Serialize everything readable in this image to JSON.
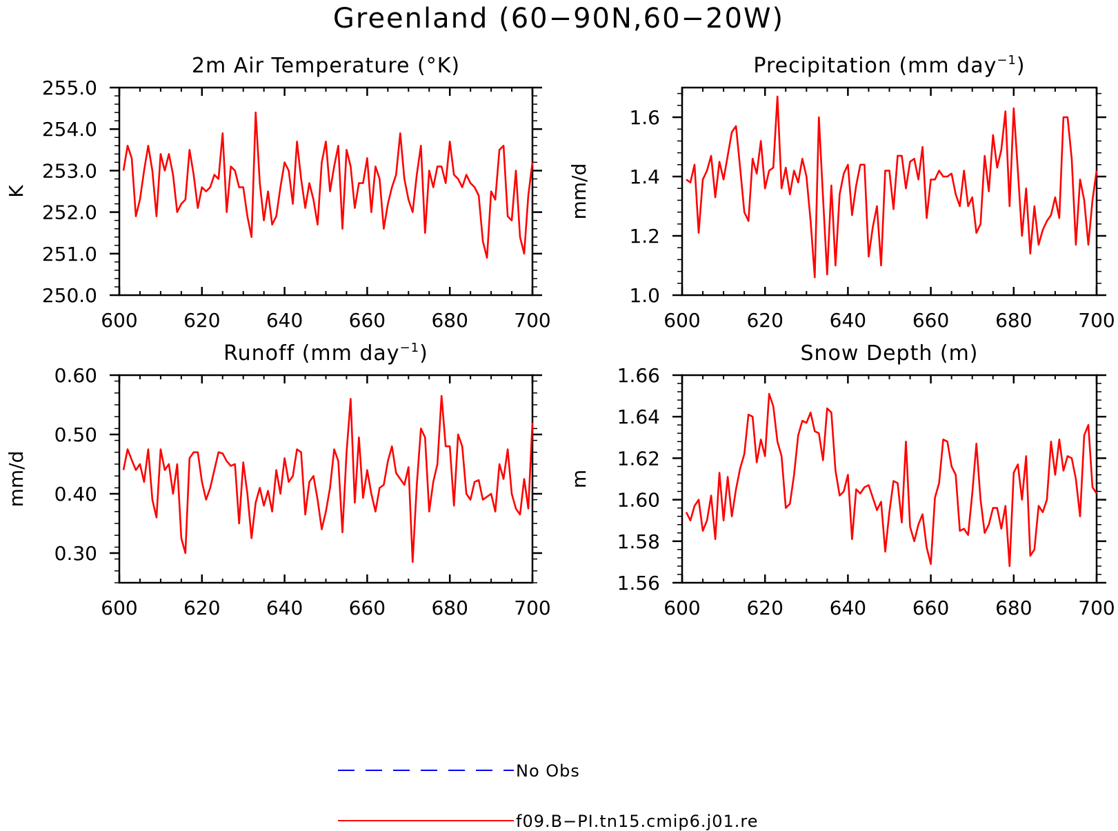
{
  "figure": {
    "title": "Greenland (60−90N,60−20W)"
  },
  "chart_data": [
    {
      "id": "temp",
      "type": "line",
      "title": "2m Air Temperature (°K)",
      "xlabel": "",
      "ylabel": "K",
      "xlim": [
        600,
        700
      ],
      "ylim": [
        250.0,
        255.0
      ],
      "xticks": [
        "600",
        "620",
        "640",
        "660",
        "680",
        "700"
      ],
      "yticks": [
        "250.0",
        "251.0",
        "252.0",
        "253.0",
        "254.0",
        "255.0"
      ],
      "x": [
        601,
        602,
        603,
        604,
        605,
        606,
        607,
        608,
        609,
        610,
        611,
        612,
        613,
        614,
        615,
        616,
        617,
        618,
        619,
        620,
        621,
        622,
        623,
        624,
        625,
        626,
        627,
        628,
        629,
        630,
        631,
        632,
        633,
        634,
        635,
        636,
        637,
        638,
        639,
        640,
        641,
        642,
        643,
        644,
        645,
        646,
        647,
        648,
        649,
        650,
        651,
        652,
        653,
        654,
        655,
        656,
        657,
        658,
        659,
        660,
        661,
        662,
        663,
        664,
        665,
        666,
        667,
        668,
        669,
        670,
        671,
        672,
        673,
        674,
        675,
        676,
        677,
        678,
        679,
        680,
        681,
        682,
        683,
        684,
        685,
        686,
        687,
        688,
        689,
        690,
        691,
        692,
        693,
        694,
        695,
        696,
        697,
        698,
        699,
        700
      ],
      "series": [
        {
          "name": "f09.B−PI.tn15.cmip6.j01.re",
          "color": "#ff0000",
          "values": [
            253.0,
            253.6,
            253.3,
            251.9,
            252.3,
            253.0,
            253.6,
            253.0,
            251.9,
            253.4,
            253.0,
            253.4,
            252.9,
            252.0,
            252.2,
            252.3,
            253.5,
            252.9,
            252.1,
            252.6,
            252.5,
            252.6,
            252.9,
            252.8,
            253.9,
            252.0,
            253.1,
            253.0,
            252.6,
            252.6,
            251.9,
            251.4,
            254.4,
            252.7,
            251.8,
            252.5,
            251.7,
            251.9,
            252.6,
            253.2,
            253.0,
            252.2,
            253.7,
            252.8,
            252.1,
            252.7,
            252.3,
            251.7,
            253.2,
            253.7,
            252.5,
            253.1,
            253.6,
            251.6,
            253.5,
            253.1,
            252.1,
            252.7,
            252.7,
            253.3,
            252.0,
            253.1,
            252.8,
            251.6,
            252.2,
            252.6,
            252.9,
            253.9,
            252.8,
            252.3,
            252.0,
            252.9,
            253.6,
            251.5,
            253.0,
            252.6,
            253.1,
            253.1,
            252.7,
            253.7,
            252.9,
            252.8,
            252.6,
            252.9,
            252.7,
            252.6,
            252.4,
            251.3,
            250.9,
            252.5,
            252.3,
            253.5,
            253.6,
            251.9,
            251.8,
            253.0,
            251.4,
            251.0,
            252.4,
            253.2
          ]
        }
      ]
    },
    {
      "id": "precip",
      "type": "line",
      "title": "Precipitation (mm day",
      "title_sup": "−1",
      "title_tail": ")",
      "xlabel": "",
      "ylabel": "mm/d",
      "xlim": [
        600,
        700
      ],
      "ylim": [
        1.0,
        1.7
      ],
      "ytick_values": [
        1.0,
        1.2,
        1.4,
        1.6
      ],
      "xticks": [
        "600",
        "620",
        "640",
        "660",
        "680",
        "700"
      ],
      "yticks": [
        "1.0",
        "1.2",
        "1.4",
        "1.6"
      ],
      "x": [
        601,
        602,
        603,
        604,
        605,
        606,
        607,
        608,
        609,
        610,
        611,
        612,
        613,
        614,
        615,
        616,
        617,
        618,
        619,
        620,
        621,
        622,
        623,
        624,
        625,
        626,
        627,
        628,
        629,
        630,
        631,
        632,
        633,
        634,
        635,
        636,
        637,
        638,
        639,
        640,
        641,
        642,
        643,
        644,
        645,
        646,
        647,
        648,
        649,
        650,
        651,
        652,
        653,
        654,
        655,
        656,
        657,
        658,
        659,
        660,
        661,
        662,
        663,
        664,
        665,
        666,
        667,
        668,
        669,
        670,
        671,
        672,
        673,
        674,
        675,
        676,
        677,
        678,
        679,
        680,
        681,
        682,
        683,
        684,
        685,
        686,
        687,
        688,
        689,
        690,
        691,
        692,
        693,
        694,
        695,
        696,
        697,
        698,
        699,
        700
      ],
      "series": [
        {
          "name": "f09.B−PI.tn15.cmip6.j01.re",
          "color": "#ff0000",
          "values": [
            1.39,
            1.38,
            1.44,
            1.21,
            1.39,
            1.42,
            1.47,
            1.33,
            1.45,
            1.39,
            1.47,
            1.55,
            1.57,
            1.43,
            1.28,
            1.25,
            1.46,
            1.41,
            1.52,
            1.36,
            1.42,
            1.43,
            1.67,
            1.36,
            1.43,
            1.34,
            1.42,
            1.38,
            1.46,
            1.4,
            1.25,
            1.06,
            1.6,
            1.33,
            1.07,
            1.37,
            1.1,
            1.34,
            1.41,
            1.44,
            1.27,
            1.37,
            1.44,
            1.44,
            1.13,
            1.23,
            1.3,
            1.1,
            1.42,
            1.42,
            1.29,
            1.47,
            1.47,
            1.36,
            1.45,
            1.46,
            1.39,
            1.5,
            1.26,
            1.39,
            1.39,
            1.42,
            1.4,
            1.4,
            1.41,
            1.34,
            1.3,
            1.42,
            1.3,
            1.33,
            1.21,
            1.24,
            1.47,
            1.35,
            1.54,
            1.43,
            1.49,
            1.62,
            1.3,
            1.63,
            1.42,
            1.2,
            1.36,
            1.14,
            1.3,
            1.17,
            1.22,
            1.25,
            1.27,
            1.33,
            1.26,
            1.6,
            1.6,
            1.46,
            1.17,
            1.39,
            1.32,
            1.17,
            1.32,
            1.42
          ]
        }
      ]
    },
    {
      "id": "runoff",
      "type": "line",
      "title": "Runoff (mm day",
      "title_sup": "−1",
      "title_tail": ")",
      "xlabel": "",
      "ylabel": "mm/d",
      "xlim": [
        600,
        700
      ],
      "ylim": [
        0.25,
        0.6
      ],
      "ytick_values": [
        0.3,
        0.4,
        0.5,
        0.6
      ],
      "xticks": [
        "600",
        "620",
        "640",
        "660",
        "680",
        "700"
      ],
      "yticks": [
        "0.30",
        "0.40",
        "0.50",
        "0.60"
      ],
      "x": [
        601,
        602,
        603,
        604,
        605,
        606,
        607,
        608,
        609,
        610,
        611,
        612,
        613,
        614,
        615,
        616,
        617,
        618,
        619,
        620,
        621,
        622,
        623,
        624,
        625,
        626,
        627,
        628,
        629,
        630,
        631,
        632,
        633,
        634,
        635,
        636,
        637,
        638,
        639,
        640,
        641,
        642,
        643,
        644,
        645,
        646,
        647,
        648,
        649,
        650,
        651,
        652,
        653,
        654,
        655,
        656,
        657,
        658,
        659,
        660,
        661,
        662,
        663,
        664,
        665,
        666,
        667,
        668,
        669,
        670,
        671,
        672,
        673,
        674,
        675,
        676,
        677,
        678,
        679,
        680,
        681,
        682,
        683,
        684,
        685,
        686,
        687,
        688,
        689,
        690,
        691,
        692,
        693,
        694,
        695,
        696,
        697,
        698,
        699,
        700
      ],
      "series": [
        {
          "name": "f09.B−PI.tn15.cmip6.j01.re",
          "color": "#ff0000",
          "values": [
            0.44,
            0.475,
            0.457,
            0.44,
            0.45,
            0.42,
            0.475,
            0.39,
            0.36,
            0.475,
            0.44,
            0.45,
            0.4,
            0.45,
            0.325,
            0.3,
            0.46,
            0.47,
            0.47,
            0.42,
            0.39,
            0.41,
            0.44,
            0.47,
            0.468,
            0.455,
            0.447,
            0.45,
            0.35,
            0.453,
            0.4,
            0.325,
            0.385,
            0.41,
            0.38,
            0.405,
            0.37,
            0.44,
            0.4,
            0.46,
            0.42,
            0.43,
            0.475,
            0.47,
            0.365,
            0.42,
            0.43,
            0.39,
            0.34,
            0.37,
            0.41,
            0.475,
            0.455,
            0.335,
            0.47,
            0.56,
            0.385,
            0.495,
            0.393,
            0.44,
            0.4,
            0.37,
            0.41,
            0.415,
            0.455,
            0.48,
            0.435,
            0.425,
            0.415,
            0.445,
            0.285,
            0.415,
            0.51,
            0.495,
            0.37,
            0.42,
            0.45,
            0.565,
            0.48,
            0.48,
            0.38,
            0.5,
            0.48,
            0.4,
            0.39,
            0.42,
            0.423,
            0.39,
            0.395,
            0.4,
            0.37,
            0.45,
            0.425,
            0.475,
            0.4,
            0.375,
            0.365,
            0.425,
            0.375,
            0.52
          ]
        }
      ]
    },
    {
      "id": "snow",
      "type": "line",
      "title": "Snow Depth (m)",
      "xlabel": "",
      "ylabel": "m",
      "xlim": [
        600,
        700
      ],
      "ylim": [
        1.56,
        1.66
      ],
      "ytick_values": [
        1.56,
        1.58,
        1.6,
        1.62,
        1.64,
        1.66
      ],
      "xticks": [
        "600",
        "620",
        "640",
        "660",
        "680",
        "700"
      ],
      "yticks": [
        "1.56",
        "1.58",
        "1.60",
        "1.62",
        "1.64",
        "1.66"
      ],
      "x": [
        601,
        602,
        603,
        604,
        605,
        606,
        607,
        608,
        609,
        610,
        611,
        612,
        613,
        614,
        615,
        616,
        617,
        618,
        619,
        620,
        621,
        622,
        623,
        624,
        625,
        626,
        627,
        628,
        629,
        630,
        631,
        632,
        633,
        634,
        635,
        636,
        637,
        638,
        639,
        640,
        641,
        642,
        643,
        644,
        645,
        646,
        647,
        648,
        649,
        650,
        651,
        652,
        653,
        654,
        655,
        656,
        657,
        658,
        659,
        660,
        661,
        662,
        663,
        664,
        665,
        666,
        667,
        668,
        669,
        670,
        671,
        672,
        673,
        674,
        675,
        676,
        677,
        678,
        679,
        680,
        681,
        682,
        683,
        684,
        685,
        686,
        687,
        688,
        689,
        690,
        691,
        692,
        693,
        694,
        695,
        696,
        697,
        698,
        699,
        700
      ],
      "series": [
        {
          "name": "f09.B−PI.tn15.cmip6.j01.re",
          "color": "#ff0000",
          "values": [
            1.594,
            1.59,
            1.597,
            1.6,
            1.585,
            1.59,
            1.602,
            1.581,
            1.613,
            1.59,
            1.611,
            1.592,
            1.605,
            1.615,
            1.622,
            1.641,
            1.64,
            1.618,
            1.629,
            1.621,
            1.651,
            1.645,
            1.628,
            1.621,
            1.596,
            1.598,
            1.612,
            1.631,
            1.638,
            1.637,
            1.642,
            1.633,
            1.632,
            1.619,
            1.644,
            1.642,
            1.614,
            1.602,
            1.604,
            1.612,
            1.581,
            1.605,
            1.603,
            1.606,
            1.607,
            1.601,
            1.595,
            1.599,
            1.575,
            1.594,
            1.609,
            1.608,
            1.589,
            1.628,
            1.587,
            1.58,
            1.588,
            1.593,
            1.577,
            1.569,
            1.601,
            1.608,
            1.629,
            1.628,
            1.616,
            1.612,
            1.585,
            1.586,
            1.583,
            1.603,
            1.627,
            1.6,
            1.584,
            1.588,
            1.596,
            1.596,
            1.586,
            1.597,
            1.568,
            1.613,
            1.617,
            1.6,
            1.621,
            1.573,
            1.576,
            1.597,
            1.594,
            1.6,
            1.628,
            1.612,
            1.629,
            1.614,
            1.621,
            1.62,
            1.61,
            1.592,
            1.631,
            1.636,
            1.606,
            1.603
          ]
        }
      ]
    }
  ],
  "legend": {
    "entries": [
      {
        "label": "No Obs",
        "color": "#0000ff",
        "style": "dashed"
      },
      {
        "label": "f09.B−PI.tn15.cmip6.j01.re",
        "color": "#ff0000",
        "style": "solid"
      }
    ]
  }
}
